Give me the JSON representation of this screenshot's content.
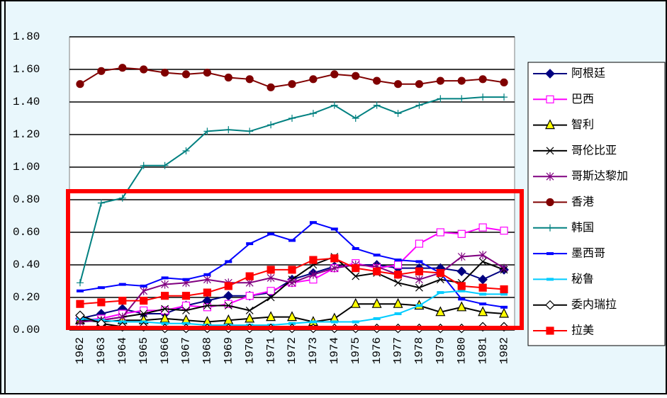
{
  "chart_data": {
    "type": "line",
    "categories": [
      "1962",
      "1963",
      "1964",
      "1965",
      "1966",
      "1967",
      "1968",
      "1969",
      "1970",
      "1971",
      "1972",
      "1973",
      "1974",
      "1975",
      "1976",
      "1977",
      "1978",
      "1979",
      "1980",
      "1981",
      "1982"
    ],
    "ylim": [
      0,
      1.8
    ],
    "yticks": [
      {
        "value": 0,
        "label": "0.00"
      },
      {
        "value": 0.2,
        "label": "0.20"
      },
      {
        "value": 0.4,
        "label": "0.40"
      },
      {
        "value": 0.6,
        "label": "0.60"
      },
      {
        "value": 0.8,
        "label": "0.80"
      },
      {
        "value": 1.0,
        "label": "1.00"
      },
      {
        "value": 1.2,
        "label": "1.20"
      },
      {
        "value": 1.4,
        "label": "1.40"
      },
      {
        "value": 1.6,
        "label": "1.60"
      },
      {
        "value": 1.8,
        "label": "1.80"
      }
    ],
    "grid": true,
    "legend": "right",
    "series": [
      {
        "name": "阿根廷",
        "color": "#000080",
        "marker": "diamond",
        "marker_fill": "#000080",
        "values": [
          0.07,
          0.1,
          0.13,
          0.1,
          0.1,
          0.15,
          0.18,
          0.21,
          0.21,
          0.23,
          0.31,
          0.35,
          0.39,
          0.4,
          0.4,
          0.38,
          0.38,
          0.38,
          0.36,
          0.31,
          0.37
        ]
      },
      {
        "name": "巴西",
        "color": "#ff00ff",
        "marker": "square",
        "marker_fill": "#ffffff",
        "values": [
          0.06,
          0.07,
          0.1,
          0.12,
          0.12,
          0.15,
          0.14,
          0.16,
          0.21,
          0.24,
          0.29,
          0.31,
          0.38,
          0.41,
          0.38,
          0.4,
          0.53,
          0.6,
          0.59,
          0.63,
          0.61
        ]
      },
      {
        "name": "智利",
        "color": "#000000",
        "marker": "triangle",
        "marker_fill": "#ffff00",
        "values": [
          0.06,
          0.05,
          0.06,
          0.06,
          0.07,
          0.06,
          0.05,
          0.06,
          0.07,
          0.08,
          0.08,
          0.05,
          0.07,
          0.16,
          0.16,
          0.16,
          0.15,
          0.11,
          0.14,
          0.11,
          0.1
        ]
      },
      {
        "name": "哥伦比亚",
        "color": "#000000",
        "marker": "x",
        "marker_fill": "#000000",
        "values": [
          0.06,
          0.06,
          0.08,
          0.1,
          0.13,
          0.12,
          0.15,
          0.15,
          0.12,
          0.2,
          0.31,
          0.4,
          0.45,
          0.33,
          0.35,
          0.29,
          0.26,
          0.31,
          0.29,
          0.42,
          0.37
        ]
      },
      {
        "name": "哥斯达黎加",
        "color": "#800080",
        "marker": "star",
        "marker_fill": "#800080",
        "values": [
          0.05,
          0.06,
          0.08,
          0.24,
          0.28,
          0.29,
          0.31,
          0.29,
          0.29,
          0.32,
          0.29,
          0.34,
          0.38,
          0.4,
          0.39,
          0.34,
          0.31,
          0.35,
          0.45,
          0.46,
          0.38
        ]
      },
      {
        "name": "香港",
        "color": "#800000",
        "marker": "circle",
        "marker_fill": "#800000",
        "values": [
          1.51,
          1.59,
          1.61,
          1.6,
          1.58,
          1.57,
          1.58,
          1.55,
          1.54,
          1.49,
          1.51,
          1.54,
          1.57,
          1.56,
          1.53,
          1.51,
          1.51,
          1.53,
          1.53,
          1.54,
          1.52
        ]
      },
      {
        "name": "韩国",
        "color": "#008080",
        "marker": "plus",
        "marker_fill": "#008080",
        "values": [
          0.29,
          0.78,
          0.81,
          1.01,
          1.01,
          1.1,
          1.22,
          1.23,
          1.22,
          1.26,
          1.3,
          1.33,
          1.38,
          1.3,
          1.38,
          1.33,
          1.38,
          1.42,
          1.42,
          1.43,
          1.43
        ]
      },
      {
        "name": "墨西哥",
        "color": "#0000ff",
        "marker": "dash",
        "marker_fill": "#0000ff",
        "values": [
          0.24,
          0.26,
          0.28,
          0.27,
          0.32,
          0.31,
          0.34,
          0.42,
          0.53,
          0.59,
          0.55,
          0.66,
          0.62,
          0.5,
          0.46,
          0.43,
          0.42,
          0.35,
          0.19,
          0.16,
          0.14
        ]
      },
      {
        "name": "秘鲁",
        "color": "#00ccff",
        "marker": "dash",
        "marker_fill": "#00ccff",
        "values": [
          0.07,
          0.06,
          0.05,
          0.05,
          0.04,
          0.04,
          0.03,
          0.03,
          0.03,
          0.03,
          0.04,
          0.05,
          0.05,
          0.05,
          0.07,
          0.1,
          0.15,
          0.23,
          0.24,
          0.22,
          0.22
        ]
      },
      {
        "name": "委内瑞拉",
        "color": "#000000",
        "marker": "diamond",
        "marker_fill": "#ffffff",
        "values": [
          0.09,
          0.04,
          0.02,
          0.02,
          0.01,
          0.01,
          0.01,
          0.01,
          0.01,
          0.01,
          0.01,
          0.01,
          0.01,
          0.01,
          0.01,
          0.01,
          0.01,
          0.01,
          0.01,
          0.02,
          0.02
        ]
      },
      {
        "name": "拉美",
        "color": "#ff0000",
        "marker": "square",
        "marker_fill": "#ff0000",
        "values": [
          0.16,
          0.17,
          0.18,
          0.18,
          0.21,
          0.21,
          0.23,
          0.27,
          0.33,
          0.37,
          0.37,
          0.43,
          0.44,
          0.38,
          0.36,
          0.34,
          0.36,
          0.35,
          0.27,
          0.26,
          0.25
        ]
      }
    ]
  }
}
